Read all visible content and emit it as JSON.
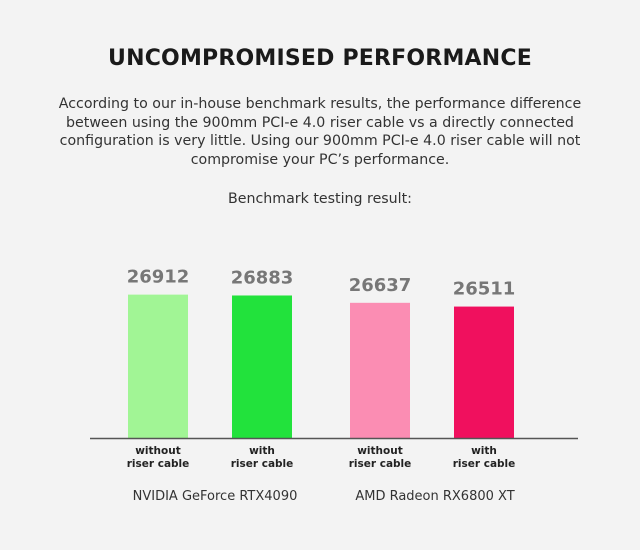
{
  "header": {
    "title": "UNCOMPROMISED PERFORMANCE",
    "description": "According to our in-house benchmark results, the performance difference between using the 900mm PCI-e 4.0 riser cable vs a directly connected configuration is very little. Using our 900mm PCI-e 4.0 riser cable will not compromise your PC’s performance.",
    "subtitle": "Benchmark testing result:"
  },
  "chart_data": {
    "type": "bar",
    "groups": [
      {
        "name": "NVIDIA GeForce RTX4090",
        "bars": [
          {
            "label_line1": "without",
            "label_line2": "riser cable",
            "value": 26912,
            "color": "#a1f595"
          },
          {
            "label_line1": "with",
            "label_line2": "riser cable",
            "value": 26883,
            "color": "#22e23c"
          }
        ]
      },
      {
        "name": "AMD Radeon RX6800 XT",
        "bars": [
          {
            "label_line1": "without",
            "label_line2": "riser cable",
            "value": 26637,
            "color": "#fb8db3"
          },
          {
            "label_line1": "with",
            "label_line2": "riser cable",
            "value": 26511,
            "color": "#f0105e"
          }
        ]
      }
    ],
    "xlabel": "",
    "ylabel": "",
    "ylim": [
      22100,
      27000
    ],
    "grid": false,
    "axis_color": "#555555"
  }
}
